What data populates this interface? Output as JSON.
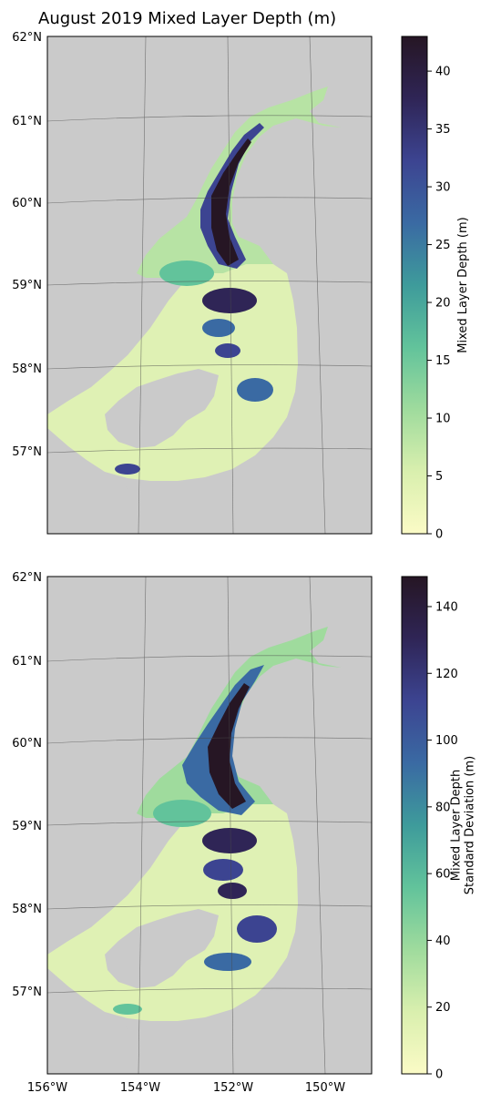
{
  "figure": {
    "title": "August 2019 Mixed Layer Depth (m)"
  },
  "lat_labels": [
    "62°N",
    "61°N",
    "60°N",
    "59°N",
    "58°N",
    "57°N"
  ],
  "lon_labels": [
    "156°W",
    "154°W",
    "152°W",
    "150°W"
  ],
  "colors": {
    "land": "#cacaca",
    "grid": "#4a4a4a",
    "cmap": [
      "#fbfbc6",
      "#d9efae",
      "#9fdb9d",
      "#62c39b",
      "#3e9b9b",
      "#3a6aa3",
      "#3c4491",
      "#2f2556",
      "#261624"
    ]
  },
  "panels": [
    {
      "id": "mean",
      "colorbar": {
        "label_lines": [
          "Mixed Layer Depth (m)"
        ],
        "ticks": [
          "0",
          "5",
          "10",
          "15",
          "20",
          "25",
          "30",
          "35",
          "40"
        ],
        "range": [
          0,
          43
        ]
      }
    },
    {
      "id": "std",
      "colorbar": {
        "label_lines": [
          "Mixed Layer Depth",
          "Standard Deviation (m)"
        ],
        "ticks": [
          "0",
          "20",
          "40",
          "60",
          "80",
          "100",
          "120",
          "140"
        ],
        "range": [
          0,
          149
        ]
      }
    }
  ]
}
